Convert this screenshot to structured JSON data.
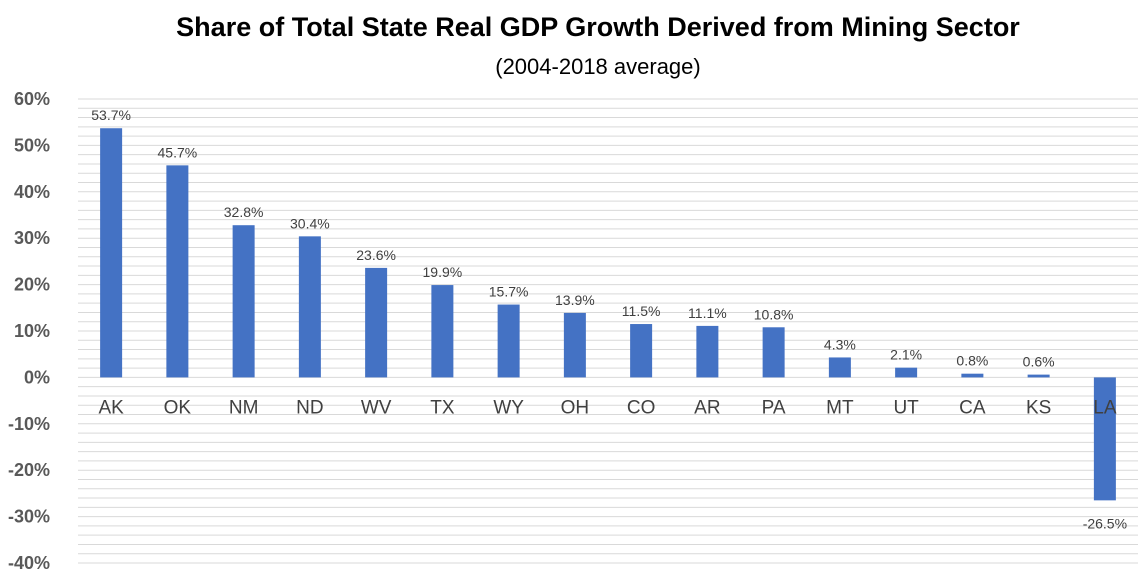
{
  "chart_data": {
    "type": "bar",
    "title": "Share of Total State Real GDP Growth Derived from Mining Sector",
    "subtitle": "(2004-2018 average)",
    "categories": [
      "AK",
      "OK",
      "NM",
      "ND",
      "WV",
      "TX",
      "WY",
      "OH",
      "CO",
      "AR",
      "PA",
      "MT",
      "UT",
      "CA",
      "KS",
      "LA"
    ],
    "values": [
      53.7,
      45.7,
      32.8,
      30.4,
      23.6,
      19.9,
      15.7,
      13.9,
      11.5,
      11.1,
      10.8,
      4.3,
      2.1,
      0.8,
      0.6,
      -26.5
    ],
    "value_labels": [
      "53.7%",
      "45.7%",
      "32.8%",
      "30.4%",
      "23.6%",
      "19.9%",
      "15.7%",
      "13.9%",
      "11.5%",
      "11.1%",
      "10.8%",
      "4.3%",
      "2.1%",
      "0.8%",
      "0.6%",
      "-26.5%"
    ],
    "ylim": [
      -40,
      60
    ],
    "yticks": [
      60,
      50,
      40,
      30,
      20,
      10,
      0,
      -10,
      -20,
      -30,
      -40
    ],
    "ytick_labels": [
      "60%",
      "50%",
      "40%",
      "30%",
      "20%",
      "10%",
      "0%",
      "-10%",
      "-20%",
      "-30%",
      "-40%"
    ],
    "xlabel": "",
    "ylabel": "",
    "grid": true,
    "bar_color": "#4472C4",
    "grid_color": "#D9D9D9",
    "legend": "none"
  }
}
